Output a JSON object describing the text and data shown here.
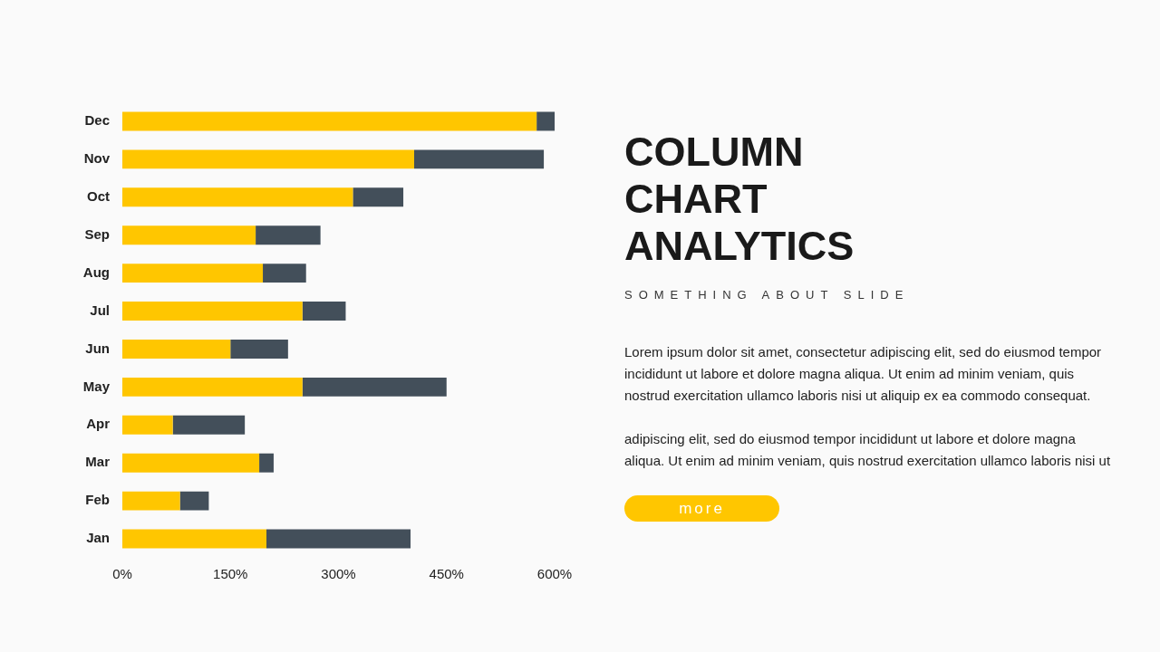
{
  "chart_data": {
    "type": "bar",
    "orientation": "horizontal",
    "stacked": true,
    "title": "COLUMN CHART ANALYTICS",
    "subtitle": "SOMETHING ABOUT SLIDE",
    "categories": [
      "Dec",
      "Nov",
      "Oct",
      "Sep",
      "Aug",
      "Jul",
      "Jun",
      "May",
      "Apr",
      "Mar",
      "Feb",
      "Jan"
    ],
    "series": [
      {
        "color": "#ffc600",
        "values": [
          575,
          405,
          320,
          185,
          195,
          250,
          150,
          250,
          70,
          190,
          80,
          200
        ]
      },
      {
        "color": "#434f5a",
        "values": [
          25,
          180,
          70,
          90,
          60,
          60,
          80,
          200,
          100,
          20,
          40,
          200
        ]
      }
    ],
    "xlim": [
      0,
      600
    ],
    "xticks": [
      {
        "value": 0,
        "label": "0%"
      },
      {
        "value": 150,
        "label": "150%"
      },
      {
        "value": 300,
        "label": "300%"
      },
      {
        "value": 450,
        "label": "450%"
      },
      {
        "value": 600,
        "label": "600%"
      }
    ],
    "grid": false,
    "legend": false,
    "annotations": [
      "Lorem ipsum dolor sit amet, consectetur adipiscing elit, sed do eiusmod tempor incididunt ut labore et dolore magna aliqua. Ut enim ad minim veniam, quis nostrud exercitation ullamco laboris nisi ut aliquip ex ea commodo consequat.",
      "adipiscing elit, sed do eiusmod tempor incididunt ut labore et dolore magna aliqua. Ut enim ad minim veniam, quis nostrud exercitation ullamco laboris nisi ut",
      "more"
    ]
  }
}
